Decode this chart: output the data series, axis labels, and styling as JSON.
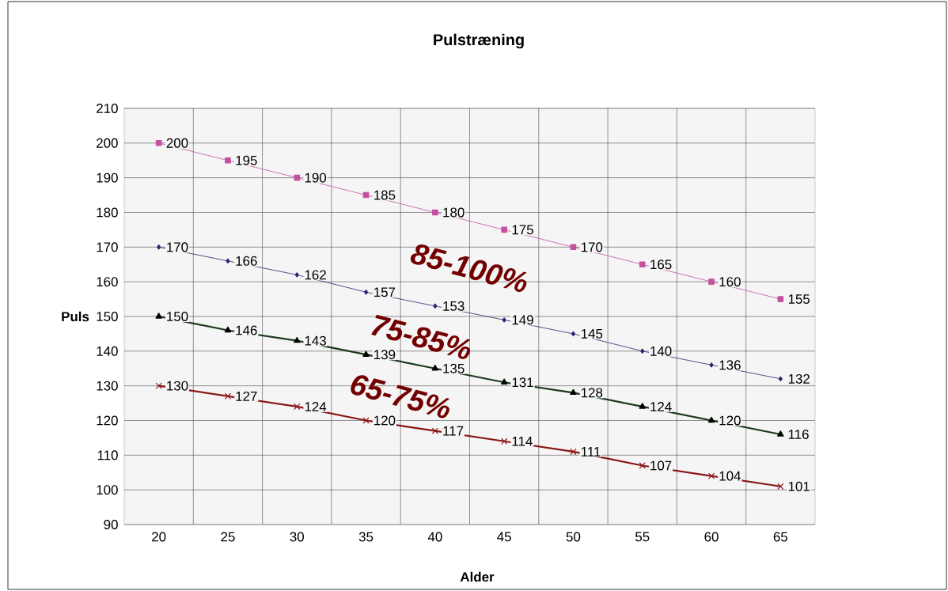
{
  "chart_data": {
    "type": "line",
    "title": "Pulstræning",
    "xlabel": "Alder",
    "ylabel": "Puls",
    "categories": [
      "20",
      "25",
      "30",
      "35",
      "40",
      "45",
      "50",
      "55",
      "60",
      "65"
    ],
    "series": [
      {
        "color": "#c4509f",
        "marker": "square",
        "values": [
          200,
          195,
          190,
          185,
          180,
          175,
          170,
          165,
          160,
          155
        ]
      },
      {
        "color": "#262672",
        "marker": "diamond",
        "values": [
          170,
          166,
          162,
          157,
          153,
          149,
          145,
          140,
          136,
          132
        ]
      },
      {
        "color": "#1c3a1c",
        "marker": "triangle",
        "values": [
          150,
          146,
          143,
          139,
          135,
          131,
          128,
          124,
          120,
          116
        ]
      },
      {
        "color": "#8a1616",
        "marker": "cross",
        "values": [
          130,
          127,
          124,
          120,
          117,
          114,
          111,
          107,
          104,
          101
        ]
      }
    ],
    "ylim": [
      90,
      210
    ],
    "yticks": [
      90,
      100,
      110,
      120,
      130,
      140,
      150,
      160,
      170,
      180,
      190,
      200,
      210
    ],
    "grid": true,
    "data_labels": true,
    "line_style": "solid",
    "annotations": [
      "85-100%",
      "75-85%",
      "65-75%"
    ]
  }
}
